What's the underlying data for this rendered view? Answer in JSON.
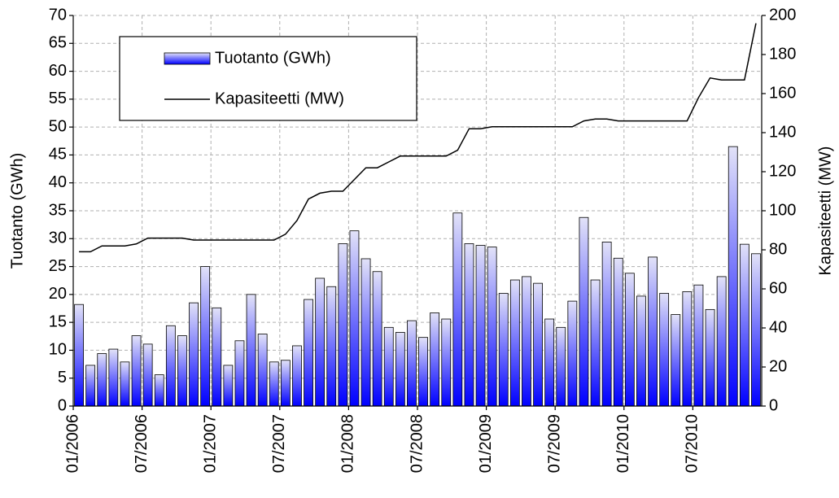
{
  "chart_data": {
    "type": "bar",
    "categories": [
      "01/2006",
      null,
      null,
      null,
      null,
      null,
      "07/2006",
      null,
      null,
      null,
      null,
      null,
      "01/2007",
      null,
      null,
      null,
      null,
      null,
      "07/2007",
      null,
      null,
      null,
      null,
      null,
      "01/2008",
      null,
      null,
      null,
      null,
      null,
      "07/2008",
      null,
      null,
      null,
      null,
      null,
      "01/2009",
      null,
      null,
      null,
      null,
      null,
      "07/2009",
      null,
      null,
      null,
      null,
      null,
      "01/2010",
      null,
      null,
      null,
      null,
      null,
      "07/2010",
      null,
      null,
      null,
      null,
      null
    ],
    "series": [
      {
        "name": "Tuotanto (GWh)",
        "type": "bar",
        "color": "#0000ff",
        "values": [
          18.2,
          7.3,
          9.4,
          10.2,
          7.9,
          12.6,
          11.1,
          5.6,
          14.4,
          12.6,
          18.5,
          25.0,
          17.6,
          7.3,
          11.7,
          20.0,
          12.9,
          7.9,
          8.2,
          10.8,
          19.1,
          22.9,
          21.4,
          29.1,
          31.4,
          26.4,
          24.1,
          14.1,
          13.2,
          15.3,
          12.3,
          16.7,
          15.6,
          34.6,
          29.1,
          28.8,
          28.5,
          20.2,
          22.6,
          23.2,
          22.0,
          15.6,
          14.1,
          18.8,
          33.8,
          22.6,
          29.4,
          26.5,
          23.8,
          19.7,
          26.7,
          20.2,
          16.4,
          20.5,
          21.7,
          17.3,
          23.2,
          46.5,
          29.0,
          27.3
        ]
      },
      {
        "name": "Kapasiteetti (MW)",
        "type": "line",
        "axis": "y2",
        "color": "#000000",
        "values": [
          79,
          79,
          82,
          82,
          82,
          83,
          86,
          86,
          86,
          86,
          85,
          85,
          85,
          85,
          85,
          85,
          85,
          85,
          88,
          95,
          106,
          109,
          110,
          110,
          116,
          122,
          122,
          125,
          128,
          128,
          128,
          128,
          128,
          131,
          142,
          142,
          143,
          143,
          143,
          143,
          143,
          143,
          143,
          143,
          146,
          147,
          147,
          146,
          146,
          146,
          146,
          146,
          146,
          146,
          158,
          168,
          167,
          167,
          167,
          196
        ]
      }
    ],
    "ylabel": "Tuotanto (GWh)",
    "y2label": "Kapasiteetti (MW)",
    "ylim": [
      0,
      70
    ],
    "yticks": [
      0,
      5,
      10,
      15,
      20,
      25,
      30,
      35,
      40,
      45,
      50,
      55,
      60,
      65,
      70
    ],
    "y2lim": [
      0,
      200
    ],
    "y2ticks": [
      0,
      20,
      40,
      60,
      80,
      100,
      120,
      140,
      160,
      180,
      200
    ],
    "grid": true
  }
}
